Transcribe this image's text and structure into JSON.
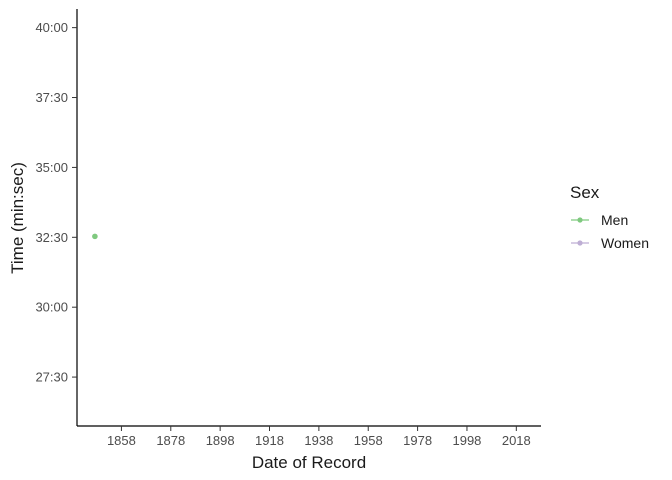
{
  "chart_data": {
    "type": "line",
    "xlabel": "Date of Record",
    "ylabel": "Time (min:sec)",
    "x_ticks": [
      "1858",
      "1878",
      "1898",
      "1918",
      "1938",
      "1958",
      "1978",
      "1998",
      "2018"
    ],
    "y_ticks": [
      "27:30",
      "30:00",
      "32:30",
      "35:00",
      "37:30",
      "40:00"
    ],
    "y_tick_values_sec": [
      1650,
      1800,
      1950,
      2100,
      2250,
      2400
    ],
    "xlim": [
      "1840-01-01",
      "2028-01-01"
    ],
    "ylim_sec": [
      1545,
      2440
    ],
    "grid": false,
    "legend": {
      "title": "Sex",
      "position": "right"
    },
    "series": [
      {
        "name": "Men",
        "color": "#7fc97f",
        "points": [
          {
            "x": "1847-04-03",
            "y_sec": 1952
          }
        ]
      },
      {
        "name": "Women",
        "color": "#beaed4",
        "points": []
      }
    ]
  }
}
